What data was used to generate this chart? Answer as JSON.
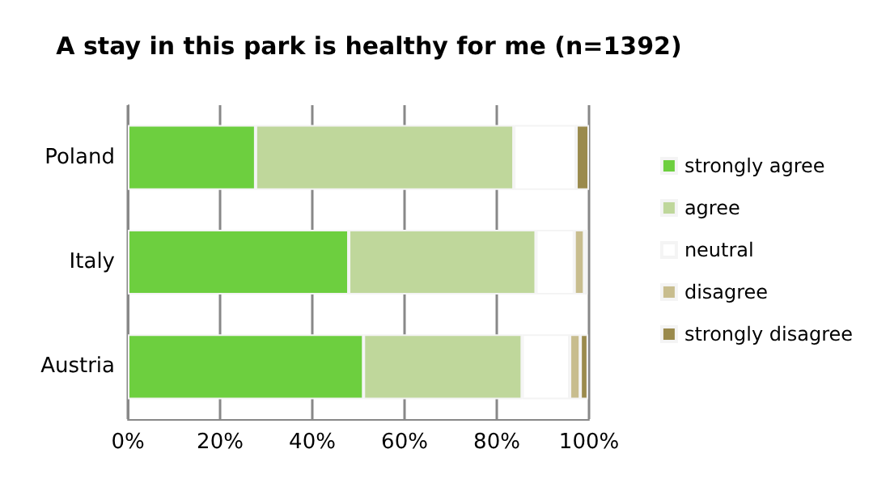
{
  "chart_data": {
    "type": "bar",
    "orientation": "horizontal",
    "stacked": true,
    "title": "A stay in this park is healthy for me (n=1392)",
    "categories": [
      "Poland",
      "Italy",
      "Austria"
    ],
    "series": [
      {
        "name": "strongly agree",
        "color": "#6dcf3f",
        "values": [
          27.7,
          47.9,
          51.1
        ]
      },
      {
        "name": "agree",
        "color": "#bfd79b",
        "values": [
          56,
          40.6,
          34.4
        ]
      },
      {
        "name": "neutral",
        "color": "#ffffff",
        "values": [
          13.5,
          8.3,
          10.3
        ]
      },
      {
        "name": "disagree",
        "color": "#c8bd8e",
        "values": [
          0,
          2.2,
          2.3
        ]
      },
      {
        "name": "strongly disagree",
        "color": "#9a8a4c",
        "values": [
          2.8,
          0.7,
          1.7
        ]
      }
    ],
    "xlim": [
      0,
      100
    ],
    "xticks": [
      {
        "value": 0,
        "label": "0%"
      },
      {
        "value": 20,
        "label": "20%"
      },
      {
        "value": 40,
        "label": "40%"
      },
      {
        "value": 60,
        "label": "60%"
      },
      {
        "value": 80,
        "label": "80%"
      },
      {
        "value": 100,
        "label": "100%"
      }
    ],
    "grid": "x",
    "legend": "right"
  }
}
